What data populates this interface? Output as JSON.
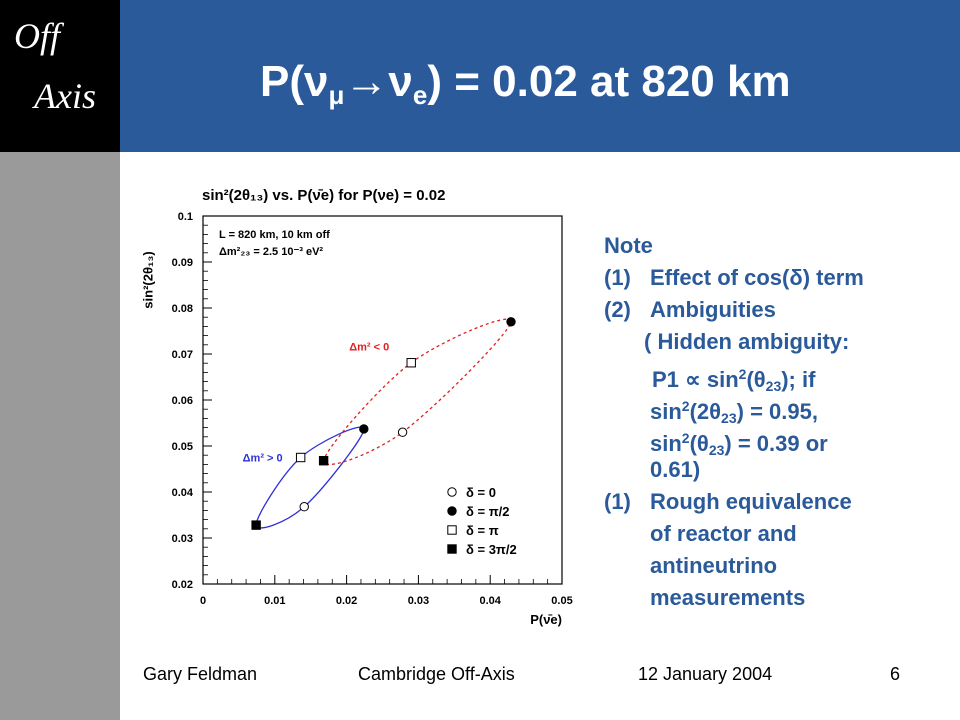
{
  "logo": {
    "line1": "Off",
    "line2": "Axis"
  },
  "title": {
    "prefix": "P(ν",
    "sub1": "μ",
    "arrow": "→ν",
    "sub2": "e",
    "suffix": ") = 0.02 at 820 km"
  },
  "notes": {
    "heading": "Note",
    "item1_num": "(1)",
    "item1_text": "Effect of cos(δ) term",
    "item2_num": "(2)",
    "item2_text": "Ambiguities",
    "hidden_1": "( Hidden ambiguity:",
    "hidden_2a": "P1 ∝ sin",
    "hidden_2b": "2",
    "hidden_2c": "(θ",
    "hidden_2d": "23",
    "hidden_2e": "); if",
    "hidden_3a": "sin",
    "hidden_3b": "2",
    "hidden_3c": "(2θ",
    "hidden_3d": "23",
    "hidden_3e": ") = 0.95,",
    "hidden_4a": "sin",
    "hidden_4b": "2",
    "hidden_4c": "(θ",
    "hidden_4d": "23",
    "hidden_4e": ") = 0.39 or",
    "hidden_5": "0.61)",
    "item3_num": "(1)",
    "item3_line1": "Rough equivalence",
    "item3_line2": "of reactor and",
    "item3_line3": "antineutrino",
    "item3_line4": "measurements"
  },
  "footer": {
    "author": "Gary Feldman",
    "event": "Cambridge Off-Axis",
    "date": "12 January 2004",
    "page": "6"
  },
  "colors": {
    "header": "#2a5a9a",
    "sidebar": "#9a9a9a",
    "normal_hierarchy": "#3030d8",
    "inverted_hierarchy": "#e02020"
  },
  "chart_data": {
    "type": "scatter",
    "title": "sin²(2θ₁₃) vs. P(ν̄e) for P(νe) = 0.02",
    "xlabel": "P(ν̄e)",
    "ylabel": "sin²(2θ₁₃)",
    "xlim": [
      0,
      0.05
    ],
    "ylim": [
      0.02,
      0.1
    ],
    "xticks": [
      "0",
      "0.01",
      "0.02",
      "0.03",
      "0.04",
      "0.05"
    ],
    "yticks": [
      "0.02",
      "0.03",
      "0.04",
      "0.05",
      "0.06",
      "0.07",
      "0.08",
      "0.09",
      "0.1"
    ],
    "info": [
      "L = 820 km, 10 km off",
      "Δm²₂₃ = 2.5 10⁻³ eV²"
    ],
    "series": [
      {
        "name": "Δm² > 0",
        "style": "solid",
        "color": "#3030d8",
        "points": [
          {
            "delta": "0",
            "x": 0.0141,
            "y": 0.0368
          },
          {
            "delta": "π/2",
            "x": 0.0224,
            "y": 0.0537
          },
          {
            "delta": "π",
            "x": 0.0136,
            "y": 0.0475
          },
          {
            "delta": "3π/2",
            "x": 0.0074,
            "y": 0.0328
          }
        ]
      },
      {
        "name": "Δm² < 0",
        "style": "dashed",
        "color": "#e02020",
        "points": [
          {
            "delta": "0",
            "x": 0.0278,
            "y": 0.053
          },
          {
            "delta": "π/2",
            "x": 0.0429,
            "y": 0.077
          },
          {
            "delta": "π",
            "x": 0.029,
            "y": 0.0681
          },
          {
            "delta": "3π/2",
            "x": 0.0168,
            "y": 0.0468
          }
        ]
      }
    ],
    "legend": {
      "placement": "bottom-right",
      "entries": [
        {
          "marker": "open-circle",
          "label": "δ = 0"
        },
        {
          "marker": "filled-circle",
          "label": "δ = π/2"
        },
        {
          "marker": "open-square",
          "label": "δ = π"
        },
        {
          "marker": "filled-square",
          "label": "δ = 3π/2"
        }
      ]
    }
  }
}
